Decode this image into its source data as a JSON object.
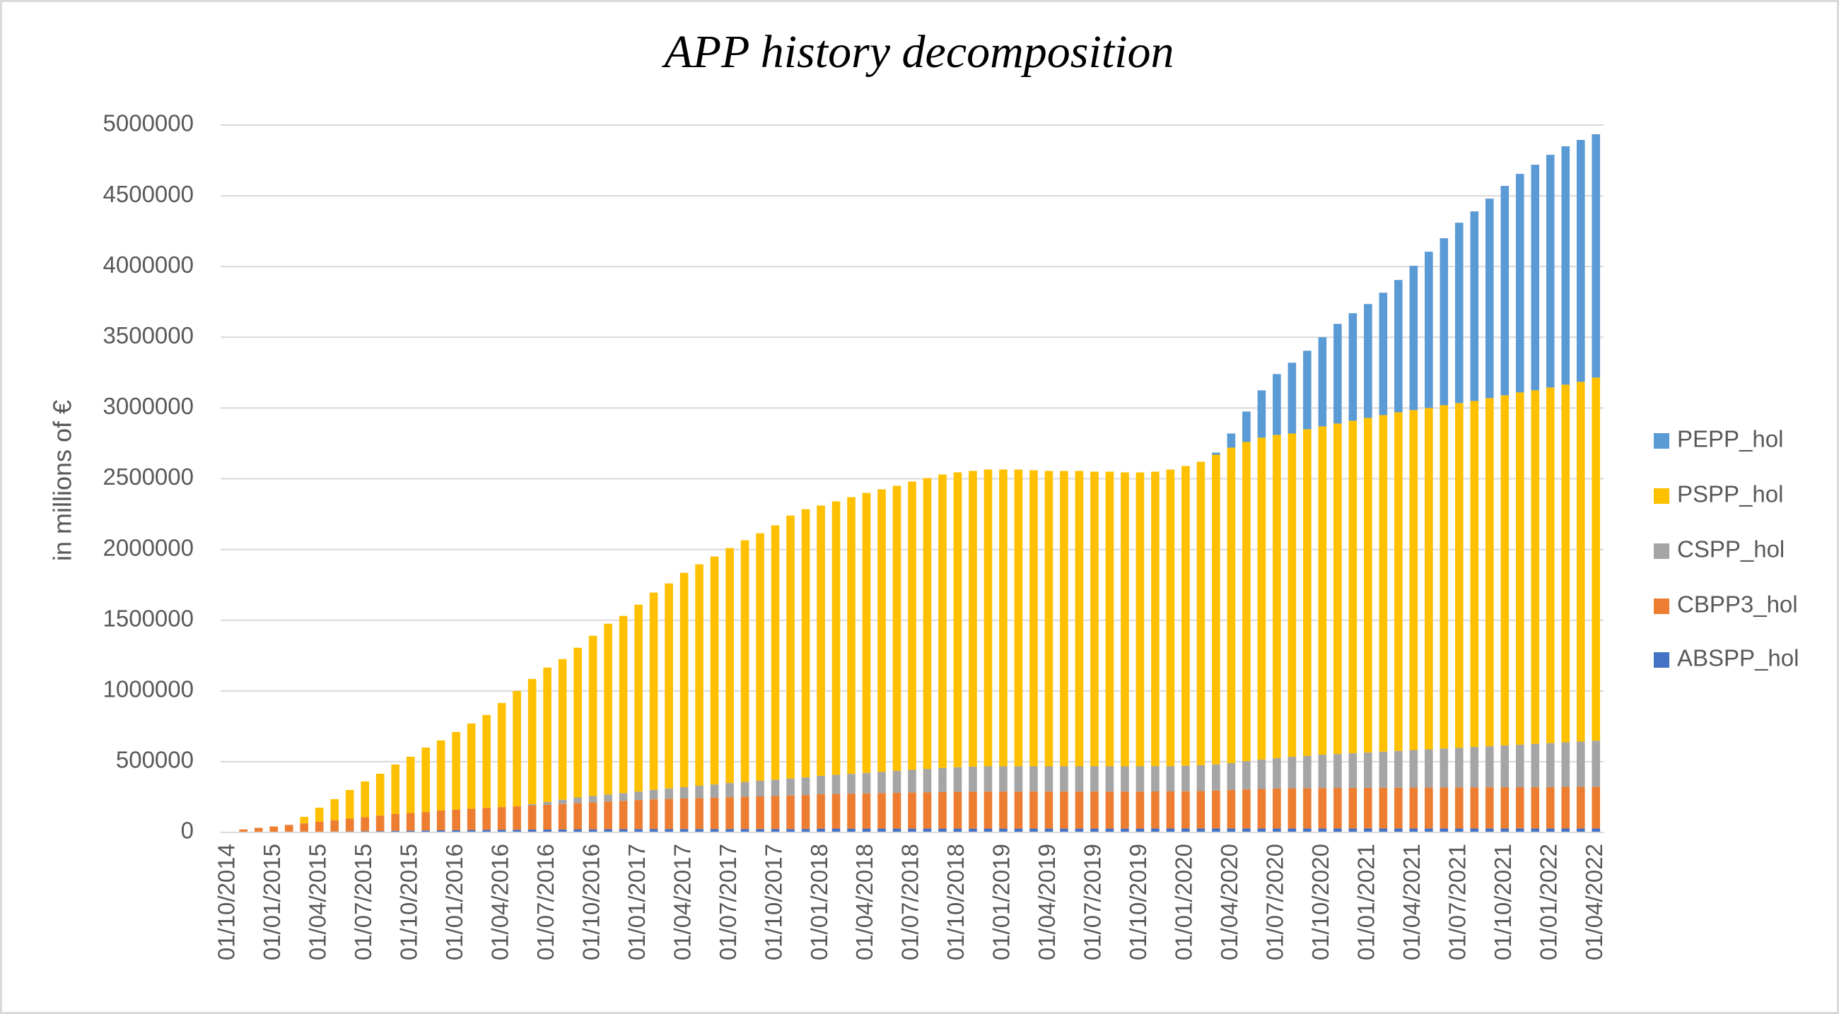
{
  "chart_data": {
    "type": "stacked_bar",
    "title": "APP history decomposition",
    "y_label": "in millions of €",
    "categories": [
      "01/10/2014",
      null,
      null,
      "01/01/2015",
      null,
      null,
      "01/04/2015",
      null,
      null,
      "01/07/2015",
      null,
      null,
      "01/10/2015",
      null,
      null,
      "01/01/2016",
      null,
      null,
      "01/04/2016",
      null,
      null,
      "01/07/2016",
      null,
      null,
      "01/10/2016",
      null,
      null,
      "01/01/2017",
      null,
      null,
      "01/04/2017",
      null,
      null,
      "01/07/2017",
      null,
      null,
      "01/10/2017",
      null,
      null,
      "01/01/2018",
      null,
      null,
      "01/04/2018",
      null,
      null,
      "01/07/2018",
      null,
      null,
      "01/10/2018",
      null,
      null,
      "01/01/2019",
      null,
      null,
      "01/04/2019",
      null,
      null,
      "01/07/2019",
      null,
      null,
      "01/10/2019",
      null,
      null,
      "01/01/2020",
      null,
      null,
      "01/04/2020",
      null,
      null,
      "01/07/2020",
      null,
      null,
      "01/10/2020",
      null,
      null,
      "01/01/2021",
      null,
      null,
      "01/04/2021",
      null,
      null,
      "01/07/2021",
      null,
      null,
      "01/10/2021",
      null,
      null,
      "01/01/2022",
      null,
      null,
      "01/04/2022"
    ],
    "series": [
      {
        "name": "ABSPP_hol",
        "color": "#4472c4",
        "values": [
          0,
          1000,
          2000,
          2000,
          3000,
          4000,
          5000,
          6000,
          7000,
          8000,
          9000,
          11000,
          12000,
          14000,
          15000,
          16000,
          17000,
          18000,
          19000,
          19000,
          20000,
          20000,
          21000,
          22000,
          22000,
          23000,
          23000,
          24000,
          24000,
          24000,
          24000,
          24000,
          24000,
          24000,
          24000,
          24000,
          24000,
          24000,
          24000,
          27000,
          27000,
          27000,
          27000,
          27000,
          27000,
          27000,
          27000,
          27000,
          27000,
          27000,
          27000,
          27000,
          27000,
          27000,
          27000,
          27000,
          27000,
          27000,
          27000,
          27000,
          27000,
          28000,
          28000,
          28000,
          28000,
          28000,
          28000,
          28000,
          28000,
          28000,
          28000,
          28000,
          28000,
          28000,
          28000,
          28000,
          28000,
          28000,
          28000,
          28000,
          28000,
          28000,
          28000,
          28000,
          28000,
          28000,
          28000,
          28000,
          28000,
          28000,
          28000
        ]
      },
      {
        "name": "CBPP3_hol",
        "color": "#ed7d31",
        "values": [
          3000,
          20000,
          30000,
          40000,
          50000,
          60000,
          70000,
          80000,
          90000,
          100000,
          110000,
          120000,
          125000,
          130000,
          140000,
          145000,
          150000,
          155000,
          160000,
          165000,
          170000,
          175000,
          180000,
          185000,
          190000,
          195000,
          200000,
          205000,
          210000,
          213000,
          216000,
          219000,
          222000,
          225000,
          228000,
          231000,
          234000,
          237000,
          240000,
          243000,
          245000,
          247000,
          249000,
          251000,
          253000,
          255000,
          257000,
          259000,
          260000,
          261000,
          262000,
          262000,
          262000,
          262000,
          262000,
          262000,
          262000,
          262000,
          262000,
          262000,
          262000,
          262000,
          262000,
          263000,
          265000,
          268000,
          272000,
          276000,
          279000,
          282000,
          284000,
          285000,
          286000,
          286000,
          287000,
          287000,
          288000,
          288000,
          289000,
          289000,
          290000,
          290000,
          291000,
          291000,
          292000,
          292000,
          293000,
          293000,
          294000,
          294000,
          295000
        ]
      },
      {
        "name": "CSPP_hol",
        "color": "#a5a5a5",
        "values": [
          0,
          0,
          0,
          0,
          0,
          0,
          0,
          0,
          0,
          0,
          0,
          0,
          0,
          0,
          0,
          0,
          0,
          0,
          0,
          0,
          10000,
          20000,
          30000,
          40000,
          45000,
          50000,
          55000,
          60000,
          67000,
          74000,
          80000,
          87000,
          93000,
          100000,
          105000,
          110000,
          115000,
          120000,
          125000,
          130000,
          135000,
          140000,
          145000,
          150000,
          155000,
          160000,
          165000,
          170000,
          174000,
          177000,
          178000,
          178000,
          178000,
          178000,
          178000,
          178000,
          178000,
          178000,
          178000,
          178000,
          178000,
          178000,
          178000,
          180000,
          182000,
          185000,
          190000,
          200000,
          208000,
          215000,
          222000,
          228000,
          235000,
          240000,
          245000,
          250000,
          255000,
          260000,
          265000,
          270000,
          275000,
          280000,
          285000,
          290000,
          295000,
          300000,
          305000,
          310000,
          315000,
          320000,
          325000
        ]
      },
      {
        "name": "PSPP_hol",
        "color": "#ffc000",
        "values": [
          0,
          0,
          0,
          0,
          0,
          46000,
          100000,
          149000,
          203000,
          252000,
          296000,
          349000,
          398000,
          456000,
          495000,
          549000,
          603000,
          657000,
          736000,
          816000,
          885000,
          950000,
          994000,
          1058000,
          1133000,
          1207000,
          1252000,
          1321000,
          1394000,
          1449000,
          1515000,
          1565000,
          1611000,
          1661000,
          1708000,
          1750000,
          1797000,
          1859000,
          1896000,
          1910000,
          1933000,
          1956000,
          1979000,
          1997000,
          2015000,
          2038000,
          2056000,
          2074000,
          2084000,
          2090000,
          2098000,
          2098000,
          2098000,
          2093000,
          2088000,
          2088000,
          2088000,
          2083000,
          2083000,
          2078000,
          2078000,
          2082000,
          2097000,
          2119000,
          2145000,
          2189000,
          2230000,
          2256000,
          2275000,
          2285000,
          2286000,
          2309000,
          2321000,
          2336000,
          2350000,
          2365000,
          2379000,
          2394000,
          2403000,
          2413000,
          2427000,
          2437000,
          2446000,
          2461000,
          2475000,
          2490000,
          2499000,
          2514000,
          2528000,
          2543000,
          2567000
        ]
      },
      {
        "name": "PEPP_hol",
        "color": "#5b9bd5",
        "values": [
          0,
          0,
          0,
          0,
          0,
          0,
          0,
          0,
          0,
          0,
          0,
          0,
          0,
          0,
          0,
          0,
          0,
          0,
          0,
          0,
          0,
          0,
          0,
          0,
          0,
          0,
          0,
          0,
          0,
          0,
          0,
          0,
          0,
          0,
          0,
          0,
          0,
          0,
          0,
          0,
          0,
          0,
          0,
          0,
          0,
          0,
          0,
          0,
          0,
          0,
          0,
          0,
          0,
          0,
          0,
          0,
          0,
          0,
          0,
          0,
          0,
          0,
          0,
          0,
          0,
          15000,
          100000,
          215000,
          335000,
          430000,
          500000,
          555000,
          630000,
          705000,
          760000,
          805000,
          865000,
          935000,
          1020000,
          1105000,
          1180000,
          1275000,
          1340000,
          1410000,
          1480000,
          1545000,
          1595000,
          1645000,
          1685000,
          1710000,
          1720000
        ]
      }
    ],
    "ylim": [
      0,
      5000000
    ],
    "yticks": [
      0,
      500000,
      1000000,
      1500000,
      2000000,
      2500000,
      3000000,
      3500000,
      4000000,
      4500000,
      5000000
    ],
    "grid": true,
    "legend": "right"
  }
}
